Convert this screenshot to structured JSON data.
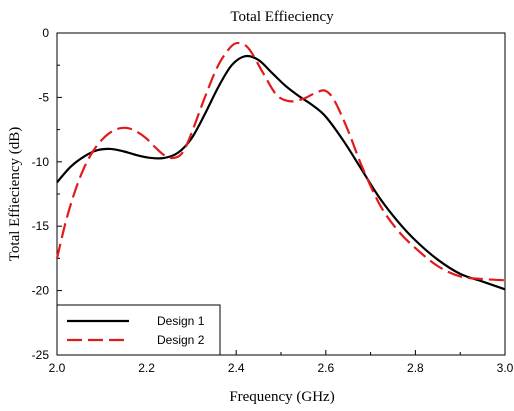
{
  "chart_data": {
    "type": "line",
    "title": "Total Effieciency",
    "xlabel": "Frequency (GHz)",
    "ylabel": "Total Effieciency (dB)",
    "xlim": [
      2.0,
      3.0
    ],
    "ylim": [
      -25,
      0
    ],
    "xticks": [
      "2.0",
      "2.2",
      "2.4",
      "2.6",
      "2.8",
      "3.0"
    ],
    "yticks": [
      "0",
      "-5",
      "-10",
      "-15",
      "-20",
      "-25"
    ],
    "grid": false,
    "legend_position": "bottom-left",
    "series": [
      {
        "name": "Design 1",
        "color": "#000000",
        "style": "solid",
        "x": [
          2.0,
          2.03,
          2.06,
          2.09,
          2.12,
          2.15,
          2.18,
          2.21,
          2.24,
          2.27,
          2.3,
          2.33,
          2.36,
          2.39,
          2.42,
          2.45,
          2.48,
          2.51,
          2.54,
          2.57,
          2.6,
          2.64,
          2.68,
          2.72,
          2.76,
          2.8,
          2.85,
          2.9,
          2.95,
          3.0
        ],
        "y": [
          -11.6,
          -10.4,
          -9.6,
          -9.1,
          -9.0,
          -9.2,
          -9.5,
          -9.7,
          -9.7,
          -9.3,
          -8.2,
          -6.3,
          -4.2,
          -2.5,
          -1.8,
          -2.1,
          -3.1,
          -4.1,
          -4.9,
          -5.6,
          -6.5,
          -8.4,
          -10.6,
          -12.8,
          -14.6,
          -16.1,
          -17.6,
          -18.7,
          -19.3,
          -19.9
        ]
      },
      {
        "name": "Design 2",
        "color": "#e01b1b",
        "style": "dashed",
        "x": [
          2.0,
          2.02,
          2.04,
          2.06,
          2.08,
          2.1,
          2.12,
          2.14,
          2.16,
          2.18,
          2.2,
          2.22,
          2.24,
          2.26,
          2.28,
          2.3,
          2.33,
          2.36,
          2.39,
          2.41,
          2.43,
          2.46,
          2.49,
          2.52,
          2.55,
          2.58,
          2.6,
          2.62,
          2.65,
          2.68,
          2.72,
          2.76,
          2.8,
          2.85,
          2.9,
          2.95,
          3.0
        ],
        "y": [
          -17.5,
          -14.6,
          -12.3,
          -10.5,
          -9.2,
          -8.3,
          -7.7,
          -7.4,
          -7.4,
          -7.7,
          -8.2,
          -8.9,
          -9.5,
          -9.7,
          -9.3,
          -7.8,
          -5.0,
          -2.5,
          -1.0,
          -0.8,
          -1.3,
          -3.1,
          -4.8,
          -5.3,
          -5.1,
          -4.6,
          -4.5,
          -5.3,
          -7.6,
          -10.3,
          -13.3,
          -15.3,
          -16.7,
          -18.1,
          -18.9,
          -19.1,
          -19.2
        ]
      }
    ]
  }
}
